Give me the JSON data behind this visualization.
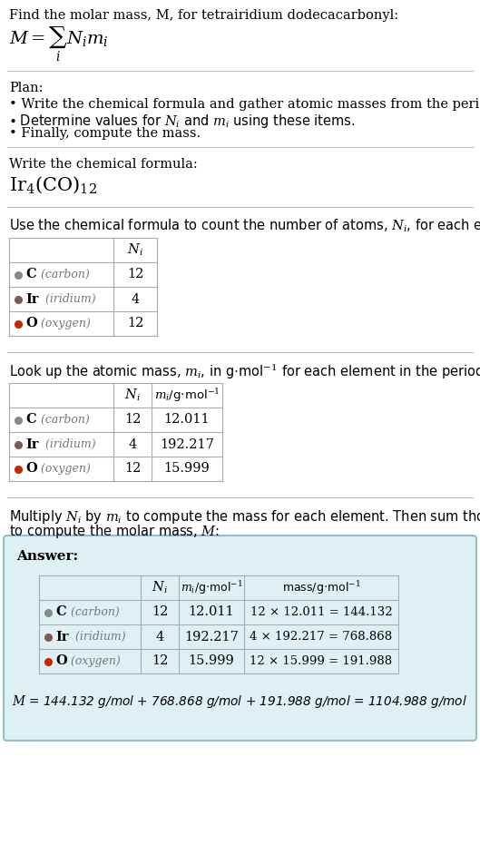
{
  "title_line": "Find the molar mass, M, for tetrairidium dodecacarbonyl:",
  "plan_header": "Plan:",
  "plan_bullet1": "• Write the chemical formula and gather atomic masses from the periodic table.",
  "plan_bullet2_pre": "• Determine values for ",
  "plan_bullet2_mid": "N",
  "plan_bullet2_post": " using these items.",
  "plan_bullet3": "• Finally, compute the mass.",
  "step1_header": "Write the chemical formula:",
  "step2_header_pre": "Use the chemical formula to count the number of atoms, ",
  "step2_header_post": ", for each element:",
  "step3_header_pre": "Look up the atomic mass, ",
  "step3_header_post": ", for each element in the periodic table:",
  "step4_line1": "Multiply N",
  "step4_line1b": " by m",
  "step4_line1c": " to compute the mass for each element. Then sum those values",
  "step4_line2": "to compute the molar mass, M:",
  "answer_label": "Answer:",
  "elements": [
    {
      "symbol": "C",
      "name": "carbon",
      "color": "#888888",
      "Ni": "12",
      "mi": "12.011",
      "mass_expr": "12 × 12.011 = 144.132"
    },
    {
      "symbol": "Ir",
      "name": "iridium",
      "color": "#7a5c4e",
      "Ni": "4",
      "mi": "192.217",
      "mass_expr": "4 × 192.217 = 768.868"
    },
    {
      "symbol": "O",
      "name": "oxygen",
      "color": "#cc2200",
      "Ni": "12",
      "mi": "15.999",
      "mass_expr": "12 × 15.999 = 191.988"
    }
  ],
  "final_answer": "M = 144.132 g/mol + 768.868 g/mol + 191.988 g/mol = 1104.988 g/mol",
  "answer_box_color": "#dff0f5",
  "answer_box_border": "#90bece",
  "bg_color": "#ffffff",
  "text_color": "#000000",
  "sep_color": "#bbbbbb"
}
